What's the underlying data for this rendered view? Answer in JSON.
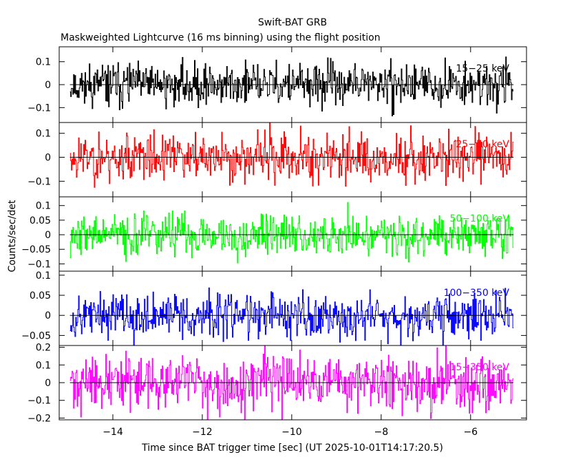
{
  "chart_data": {
    "type": "line",
    "title": "Swift-BAT GRB",
    "subtitle": "Maskweighted Lightcurve (16 ms binning) using the flight position",
    "xlabel": "Time since BAT trigger time [sec] (UT 2025-10-01T14:17:20.5)",
    "ylabel": "Counts/sec/det",
    "xlim": [
      -15.2,
      -4.75
    ],
    "x_ticks": [
      -14,
      -12,
      -10,
      -8,
      -6
    ],
    "x_tick_labels": [
      "−14",
      "−12",
      "−10",
      "−8",
      "−6"
    ],
    "series_range": [
      -14.96,
      -5.04
    ],
    "bin_width_sec": 0.016,
    "series": [
      {
        "name": "15-25 keV",
        "label": "15−25 keV",
        "color": "#000000",
        "ylim": [
          -0.165,
          0.165
        ],
        "yticks": [
          0.1,
          0,
          -0.1
        ],
        "ytick_labels": [
          "0.1",
          "0",
          "−0.1"
        ],
        "amplitude": 0.045,
        "seed": 11
      },
      {
        "name": "25-50 keV",
        "label": "25−50 keV",
        "color": "#ff0000",
        "ylim": [
          -0.165,
          0.145
        ],
        "yticks": [
          0.1,
          0,
          -0.1
        ],
        "ytick_labels": [
          "0.1",
          "0",
          "−0.1"
        ],
        "amplitude": 0.05,
        "seed": 23
      },
      {
        "name": "50-100 keV",
        "label": "50−100 keV",
        "color": "#00ff00",
        "ylim": [
          -0.125,
          0.13
        ],
        "yticks": [
          0.1,
          0.05,
          0,
          -0.05,
          -0.1
        ],
        "ytick_labels": [
          "0.1",
          "0.05",
          "0",
          "−0.05",
          "−0.1"
        ],
        "amplitude": 0.035,
        "seed": 37
      },
      {
        "name": "100-350 keV",
        "label": "100−350 keV",
        "color": "#0000ff",
        "ylim": [
          -0.075,
          0.11
        ],
        "yticks": [
          0.1,
          0.05,
          0,
          -0.05
        ],
        "ytick_labels": [
          "0.1",
          "0.05",
          "0",
          "−0.05"
        ],
        "amplitude": 0.028,
        "seed": 53
      },
      {
        "name": "15-350 keV",
        "label": "15−350 keV",
        "color": "#ff00ff",
        "ylim": [
          -0.21,
          0.21
        ],
        "yticks": [
          0.2,
          0.1,
          0,
          -0.1,
          -0.2
        ],
        "ytick_labels": [
          "0.2",
          "0.1",
          "0",
          "−0.1",
          "−0.2"
        ],
        "amplitude": 0.075,
        "seed": 71
      }
    ]
  }
}
